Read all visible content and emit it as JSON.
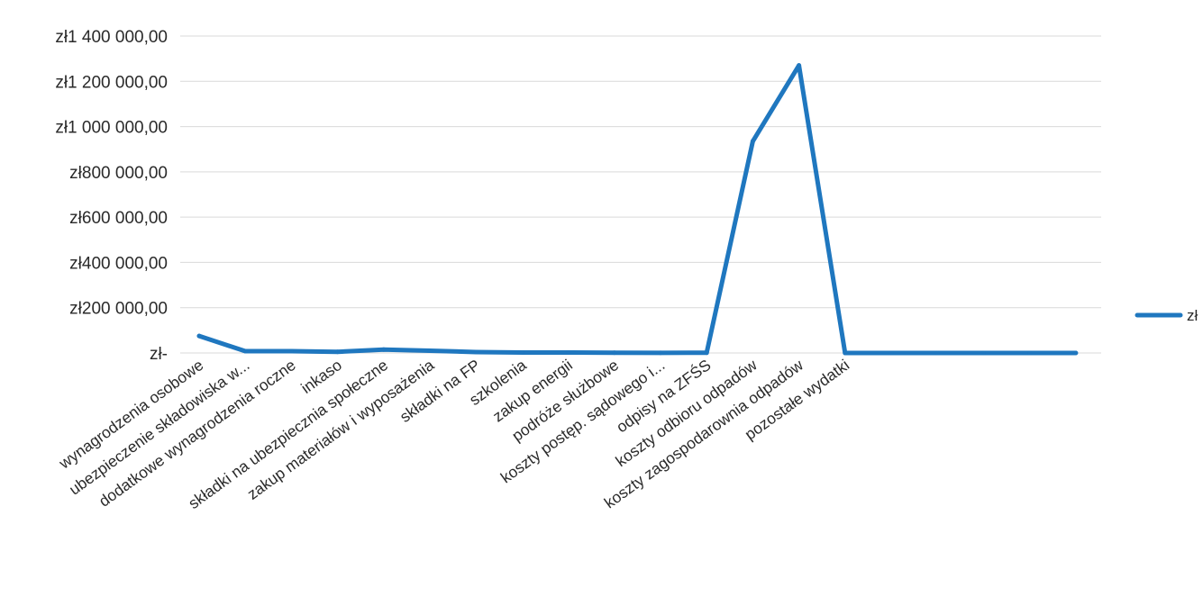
{
  "chart_data": {
    "type": "line",
    "ylim": [
      0,
      1400000
    ],
    "y_ticks": [
      {
        "value": 1400000,
        "label": "zł1 400 000,00"
      },
      {
        "value": 1200000,
        "label": "zł1 200 000,00"
      },
      {
        "value": 1000000,
        "label": "zł1 000 000,00"
      },
      {
        "value": 800000,
        "label": "zł800 000,00"
      },
      {
        "value": 600000,
        "label": "zł600 000,00"
      },
      {
        "value": 400000,
        "label": "zł400 000,00"
      },
      {
        "value": 200000,
        "label": "zł200 000,00"
      },
      {
        "value": 0,
        "label": "zł-"
      }
    ],
    "grid": true,
    "legend_position": "right",
    "categories": [
      "wynagrodzenia osobowe",
      "ubezpieczenie składowiska w...",
      "dodatkowe wynagrodzenia roczne",
      "inkaso",
      "składki na ubezpiecznia społeczne",
      "zakup materiałów i wyposażenia",
      "składki na FP",
      "szkolenia",
      "zakup energii",
      "podróże służbowe",
      "koszty postęp. sądowego i...",
      "odpisy na ZFŚS",
      "koszty odbioru odpadów",
      "koszty zagospodarownia odpadów",
      "pozostałe wydatki",
      "",
      "",
      "",
      "",
      ""
    ],
    "series": [
      {
        "name": "zł",
        "color": "#1f77bf",
        "values": [
          75000,
          8000,
          8000,
          5000,
          15000,
          10000,
          4000,
          2000,
          2000,
          1000,
          500,
          1000,
          935000,
          1270000,
          0,
          0,
          0,
          0,
          0,
          0
        ]
      }
    ]
  }
}
